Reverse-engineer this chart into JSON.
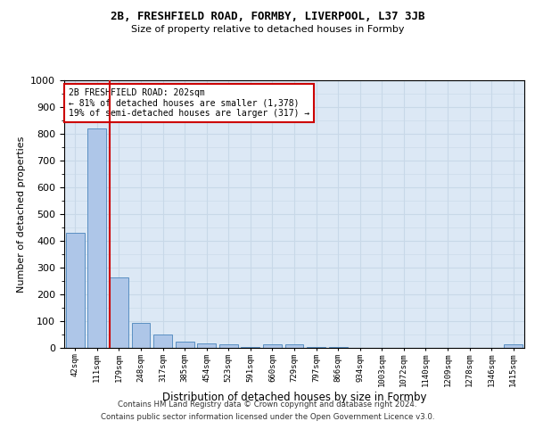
{
  "title1": "2B, FRESHFIELD ROAD, FORMBY, LIVERPOOL, L37 3JB",
  "title2": "Size of property relative to detached houses in Formby",
  "xlabel": "Distribution of detached houses by size in Formby",
  "ylabel": "Number of detached properties",
  "categories": [
    "42sqm",
    "111sqm",
    "179sqm",
    "248sqm",
    "317sqm",
    "385sqm",
    "454sqm",
    "523sqm",
    "591sqm",
    "660sqm",
    "729sqm",
    "797sqm",
    "866sqm",
    "934sqm",
    "1003sqm",
    "1072sqm",
    "1140sqm",
    "1209sqm",
    "1278sqm",
    "1346sqm",
    "1415sqm"
  ],
  "values": [
    430,
    820,
    265,
    93,
    50,
    25,
    18,
    13,
    3,
    12,
    12,
    3,
    3,
    0,
    0,
    0,
    0,
    0,
    0,
    0,
    13
  ],
  "bar_color": "#aec6e8",
  "bar_edge_color": "#5a8fc2",
  "red_line_index": 2,
  "annotation_line1": "2B FRESHFIELD ROAD: 202sqm",
  "annotation_line2": "← 81% of detached houses are smaller (1,378)",
  "annotation_line3": "19% of semi-detached houses are larger (317) →",
  "annotation_box_color": "#ffffff",
  "annotation_box_edge": "#cc0000",
  "red_line_color": "#cc0000",
  "grid_color": "#c8d8e8",
  "bg_color": "#dce8f5",
  "footer1": "Contains HM Land Registry data © Crown copyright and database right 2024.",
  "footer2": "Contains public sector information licensed under the Open Government Licence v3.0.",
  "ylim": [
    0,
    1000
  ],
  "yticks": [
    0,
    100,
    200,
    300,
    400,
    500,
    600,
    700,
    800,
    900,
    1000
  ]
}
